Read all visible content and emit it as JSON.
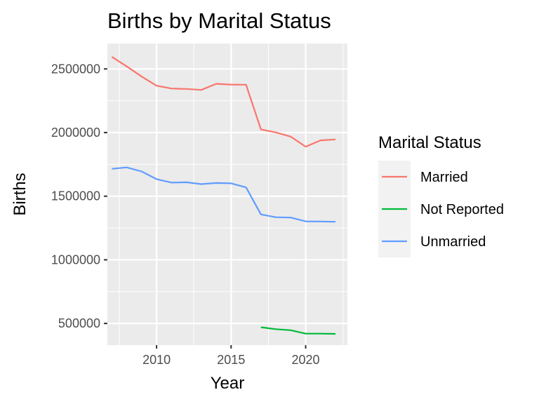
{
  "chart_data": {
    "type": "line",
    "title": "Births by Marital Status",
    "xlabel": "Year",
    "ylabel": "Births",
    "xlim": [
      2006.7,
      2022.8
    ],
    "ylim": [
      330000,
      2700000
    ],
    "x_ticks": [
      2010,
      2015,
      2020
    ],
    "x_tick_labels": [
      "2010",
      "2015",
      "2020"
    ],
    "y_ticks": [
      500000,
      1000000,
      1500000,
      2000000,
      2500000
    ],
    "y_tick_labels": [
      "500000",
      "1000000",
      "1500000",
      "2000000",
      "2500000"
    ],
    "grid": true,
    "legend": {
      "title": "Marital Status",
      "position": "right"
    },
    "series": [
      {
        "name": "Married",
        "color": "#F8766D",
        "x": [
          2007,
          2008,
          2009,
          2010,
          2011,
          2012,
          2013,
          2014,
          2015,
          2016,
          2017,
          2018,
          2019,
          2020,
          2021,
          2022
        ],
        "y": [
          2595000,
          2520000,
          2440000,
          2368000,
          2346000,
          2343000,
          2335000,
          2383000,
          2377000,
          2376000,
          2025000,
          2001000,
          1968000,
          1889000,
          1939000,
          1946000
        ]
      },
      {
        "name": "Not Reported",
        "color": "#00BA38",
        "x": [
          2017,
          2018,
          2019,
          2020,
          2021,
          2022
        ],
        "y": [
          470000,
          455000,
          447000,
          420000,
          420000,
          418000
        ]
      },
      {
        "name": "Unmarried",
        "color": "#619CFF",
        "x": [
          2007,
          2008,
          2009,
          2010,
          2011,
          2012,
          2013,
          2014,
          2015,
          2016,
          2017,
          2018,
          2019,
          2020,
          2021,
          2022
        ],
        "y": [
          1715000,
          1726000,
          1694000,
          1634000,
          1607000,
          1609000,
          1595000,
          1604000,
          1601000,
          1569000,
          1357000,
          1335000,
          1332000,
          1302000,
          1301000,
          1299000
        ]
      }
    ]
  },
  "colors": {
    "panel_background": "#EBEBEB",
    "grid_major": "#FFFFFF",
    "axis_text": "#4D4D4D"
  }
}
